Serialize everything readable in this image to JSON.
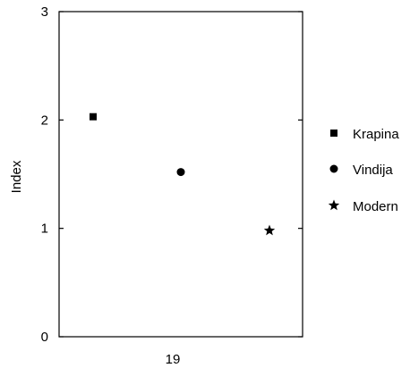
{
  "chart_data": {
    "type": "scatter",
    "title": "",
    "xlabel": "",
    "ylabel": "Index",
    "ylim": [
      0,
      3
    ],
    "yticks": [
      "0",
      "1",
      "2",
      "3"
    ],
    "xticks": [
      "19"
    ],
    "grid": false,
    "legend_position": "right",
    "series": [
      {
        "name": "Krapina",
        "marker": "square",
        "x": 1,
        "y": 2.03
      },
      {
        "name": "Vindija",
        "marker": "circle",
        "x": 2,
        "y": 1.52
      },
      {
        "name": "Modern",
        "marker": "star",
        "x": 3,
        "y": 0.98
      }
    ],
    "colors": {
      "marker": "#000000",
      "axis": "#000000"
    }
  }
}
